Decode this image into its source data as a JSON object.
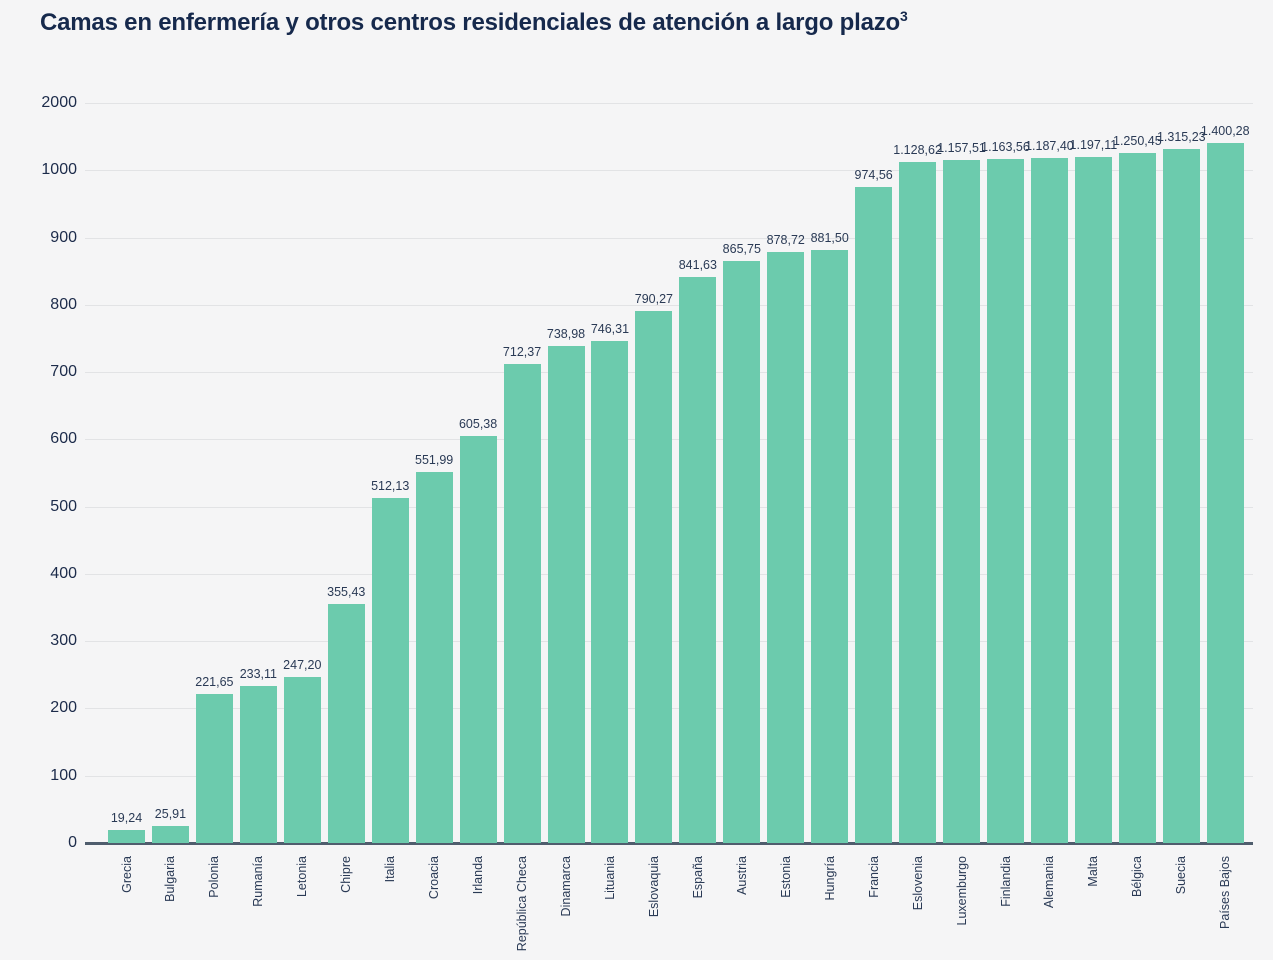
{
  "page": {
    "title_text": "Camas en enfermería y otros centros residenciales de atención a largo plazo",
    "title_superscript": "3"
  },
  "chart_data": {
    "type": "bar",
    "title": "Camas en enfermería y otros centros residenciales de atención a largo plazo³",
    "categories": [
      "Grecia",
      "Bulgaria",
      "Polonia",
      "Rumanía",
      "Letonia",
      "Chipre",
      "Italia",
      "Croacia",
      "Irlanda",
      "República Checa",
      "Dinamarca",
      "Lituania",
      "Eslovaquia",
      "España",
      "Austria",
      "Estonia",
      "Hungría",
      "Francia",
      "Eslovenia",
      "Luxemburgo",
      "Finlandia",
      "Alemania",
      "Malta",
      "Bélgica",
      "Suecia",
      "Países Bajos"
    ],
    "values": [
      19.24,
      25.91,
      221.65,
      233.11,
      247.2,
      355.43,
      512.13,
      551.99,
      605.38,
      712.37,
      738.98,
      746.31,
      790.27,
      841.63,
      865.75,
      878.72,
      881.5,
      974.56,
      1128.62,
      1157.51,
      1163.56,
      1187.4,
      1197.11,
      1250.45,
      1315.23,
      1400.28
    ],
    "value_labels": [
      "19,24",
      "25,91",
      "221,65",
      "233,11",
      "247,20",
      "355,43",
      "512,13",
      "551,99",
      "605,38",
      "712,37",
      "738,98",
      "746,31",
      "790,27",
      "841,63",
      "865,75",
      "878,72",
      "881,50",
      "974,56",
      "1.128,62",
      "1.157,51",
      "1.163,56",
      "1.187,40",
      "1.197,11",
      "1.250,45",
      "1.315,23",
      "1.400,28"
    ],
    "xlabel": "",
    "ylabel": "",
    "y_axis": {
      "tick_labels_top_to_bottom": [
        "2000",
        "1000",
        "900",
        "800",
        "700",
        "600",
        "500",
        "400",
        "300",
        "200",
        "100",
        "0"
      ],
      "range": [
        0,
        2000
      ],
      "scale_note": "non-linear: equal tick spacing; 100-unit steps from 0 to 1000, then a single 1000-unit step from 1000 to 2000",
      "grid": true
    },
    "legend": null,
    "colors": {
      "bar": "#6CCBAD",
      "background": "#F5F5F6",
      "gridline": "#E2E3E5",
      "axis_line": "#4F5D6D",
      "title_text": "#16294C",
      "label_text": "#2A3A55"
    }
  }
}
